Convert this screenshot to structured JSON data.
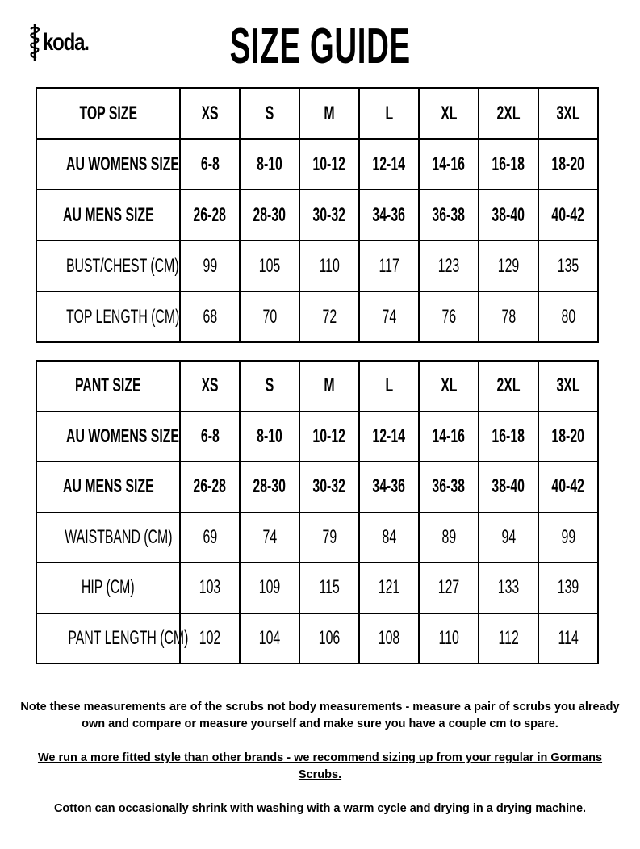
{
  "logo": {
    "text": "koda."
  },
  "title": "SIZE GUIDE",
  "top_table": {
    "rows": [
      {
        "label": "TOP SIZE",
        "bold": true,
        "values": [
          "XS",
          "S",
          "M",
          "L",
          "XL",
          "2XL",
          "3XL"
        ]
      },
      {
        "label": "AU WOMENS SIZE",
        "bold": true,
        "values": [
          "6-8",
          "8-10",
          "10-12",
          "12-14",
          "14-16",
          "16-18",
          "18-20"
        ]
      },
      {
        "label": "AU MENS SIZE",
        "bold": true,
        "values": [
          "26-28",
          "28-30",
          "30-32",
          "34-36",
          "36-38",
          "38-40",
          "40-42"
        ]
      },
      {
        "label": "BUST/CHEST (CM)",
        "bold": false,
        "values": [
          "99",
          "105",
          "110",
          "117",
          "123",
          "129",
          "135"
        ]
      },
      {
        "label": "TOP LENGTH (CM)",
        "bold": false,
        "values": [
          "68",
          "70",
          "72",
          "74",
          "76",
          "78",
          "80"
        ]
      }
    ]
  },
  "pant_table": {
    "rows": [
      {
        "label": "PANT SIZE",
        "bold": true,
        "values": [
          "XS",
          "S",
          "M",
          "L",
          "XL",
          "2XL",
          "3XL"
        ]
      },
      {
        "label": "AU WOMENS SIZE",
        "bold": true,
        "values": [
          "6-8",
          "8-10",
          "10-12",
          "12-14",
          "14-16",
          "16-18",
          "18-20"
        ]
      },
      {
        "label": "AU MENS SIZE",
        "bold": true,
        "values": [
          "26-28",
          "28-30",
          "30-32",
          "34-36",
          "36-38",
          "38-40",
          "40-42"
        ]
      },
      {
        "label": "WAISTBAND (CM)",
        "bold": false,
        "values": [
          "69",
          "74",
          "79",
          "84",
          "89",
          "94",
          "99"
        ]
      },
      {
        "label": "HIP (CM)",
        "bold": false,
        "values": [
          "103",
          "109",
          "115",
          "121",
          "127",
          "133",
          "139"
        ]
      },
      {
        "label": "PANT LENGTH (CM)",
        "bold": false,
        "values": [
          "102",
          "104",
          "106",
          "108",
          "110",
          "112",
          "114"
        ]
      }
    ]
  },
  "notes": {
    "note1": "Note these measurements are of the scrubs not body measurements - measure a pair of scrubs you already own and compare or measure yourself and make sure you have a couple cm to spare.",
    "note2": "We run a more fitted style than other brands - we recommend sizing up from your regular in Gormans Scrubs.",
    "note3": "Cotton can occasionally shrink with washing with a warm cycle and drying in a drying machine."
  }
}
